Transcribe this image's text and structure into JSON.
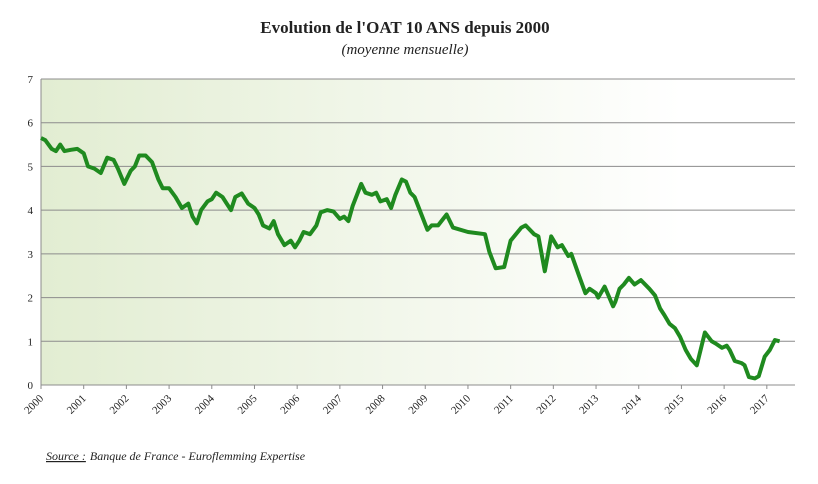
{
  "chart_data": {
    "type": "line",
    "title": "Evolution de l'OAT 10 ANS depuis 2000",
    "subtitle": "(moyenne mensuelle)",
    "source_label": "Source :",
    "source_text": "Banque de France - Euroflemming Expertise",
    "x": [
      2000.0,
      2000.1,
      2000.25,
      2000.35,
      2000.45,
      2000.55,
      2000.7,
      2000.85,
      2001.0,
      2001.1,
      2001.25,
      2001.4,
      2001.55,
      2001.7,
      2001.8,
      2001.95,
      2002.1,
      2002.2,
      2002.3,
      2002.45,
      2002.6,
      2002.75,
      2002.85,
      2003.0,
      2003.15,
      2003.3,
      2003.45,
      2003.55,
      2003.65,
      2003.75,
      2003.9,
      2004.0,
      2004.1,
      2004.25,
      2004.35,
      2004.45,
      2004.55,
      2004.7,
      2004.85,
      2005.0,
      2005.1,
      2005.2,
      2005.35,
      2005.45,
      2005.55,
      2005.7,
      2005.85,
      2005.95,
      2006.05,
      2006.15,
      2006.3,
      2006.45,
      2006.55,
      2006.7,
      2006.85,
      2007.0,
      2007.1,
      2007.2,
      2007.3,
      2007.5,
      2007.6,
      2007.75,
      2007.85,
      2007.95,
      2008.1,
      2008.2,
      2008.3,
      2008.45,
      2008.55,
      2008.65,
      2008.75,
      2008.85,
      2009.05,
      2009.15,
      2009.3,
      2009.5,
      2009.65,
      2010.0,
      2010.4,
      2010.5,
      2010.65,
      2010.85,
      2011.0,
      2011.25,
      2011.35,
      2011.55,
      2011.65,
      2011.8,
      2011.95,
      2012.1,
      2012.2,
      2012.35,
      2012.42,
      2012.6,
      2012.75,
      2012.85,
      2013.0,
      2013.05,
      2013.2,
      2013.4,
      2013.45,
      2013.55,
      2013.65,
      2013.77,
      2013.9,
      2014.05,
      2014.25,
      2014.38,
      2014.5,
      2014.6,
      2014.72,
      2014.85,
      2014.97,
      2015.1,
      2015.22,
      2015.36,
      2015.55,
      2015.71,
      2015.8,
      2015.95,
      2016.06,
      2016.13,
      2016.25,
      2016.41,
      2016.48,
      2016.58,
      2016.72,
      2016.81,
      2016.95,
      2017.07,
      2017.19,
      2017.3
    ],
    "series": [
      {
        "name": "OAT 10 ans",
        "color": "#1f8a1f",
        "values": [
          5.65,
          5.6,
          5.4,
          5.35,
          5.5,
          5.35,
          5.38,
          5.4,
          5.3,
          5.0,
          4.95,
          4.85,
          5.2,
          5.15,
          4.95,
          4.6,
          4.9,
          5.0,
          5.25,
          5.25,
          5.1,
          4.7,
          4.5,
          4.5,
          4.3,
          4.05,
          4.15,
          3.85,
          3.7,
          4.0,
          4.2,
          4.25,
          4.4,
          4.3,
          4.15,
          4.0,
          4.3,
          4.38,
          4.15,
          4.05,
          3.9,
          3.65,
          3.58,
          3.75,
          3.45,
          3.2,
          3.3,
          3.15,
          3.3,
          3.5,
          3.45,
          3.65,
          3.95,
          4.0,
          3.97,
          3.8,
          3.85,
          3.75,
          4.1,
          4.6,
          4.4,
          4.35,
          4.4,
          4.2,
          4.25,
          4.05,
          4.35,
          4.7,
          4.65,
          4.4,
          4.3,
          4.05,
          3.55,
          3.65,
          3.65,
          3.9,
          3.6,
          3.5,
          3.45,
          3.05,
          2.67,
          2.7,
          3.3,
          3.6,
          3.65,
          3.45,
          3.4,
          2.6,
          3.4,
          3.15,
          3.2,
          2.95,
          3.0,
          2.5,
          2.1,
          2.2,
          2.1,
          2.0,
          2.25,
          1.8,
          1.9,
          2.2,
          2.3,
          2.45,
          2.3,
          2.4,
          2.2,
          2.05,
          1.75,
          1.6,
          1.4,
          1.3,
          1.1,
          0.8,
          0.6,
          0.45,
          1.2,
          1.0,
          0.95,
          0.85,
          0.9,
          0.8,
          0.55,
          0.5,
          0.45,
          0.18,
          0.15,
          0.2,
          0.65,
          0.8,
          1.03,
          1.0
        ]
      }
    ],
    "xlim": [
      2000,
      2017.66
    ],
    "xticks": [
      2000,
      2001,
      2002,
      2003,
      2004,
      2005,
      2006,
      2007,
      2008,
      2009,
      2010,
      2011,
      2012,
      2013,
      2014,
      2015,
      2016,
      2017
    ],
    "ylim": [
      0,
      7
    ],
    "yticks": [
      0,
      1,
      2,
      3,
      4,
      5,
      6,
      7
    ],
    "grid": true
  }
}
